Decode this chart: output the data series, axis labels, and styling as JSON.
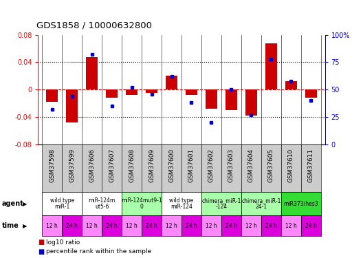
{
  "title": "GDS1858 / 10000632800",
  "samples": [
    "GSM37598",
    "GSM37599",
    "GSM37606",
    "GSM37607",
    "GSM37608",
    "GSM37609",
    "GSM37600",
    "GSM37601",
    "GSM37602",
    "GSM37603",
    "GSM37604",
    "GSM37605",
    "GSM37610",
    "GSM37611"
  ],
  "log10_ratio": [
    -0.018,
    -0.048,
    0.048,
    -0.012,
    -0.008,
    -0.005,
    0.02,
    -0.008,
    -0.028,
    -0.03,
    -0.038,
    0.068,
    0.012,
    -0.012
  ],
  "pct_rank": [
    32,
    44,
    82,
    35,
    52,
    46,
    62,
    38,
    20,
    50,
    27,
    78,
    58,
    40
  ],
  "ylim_left": [
    -0.08,
    0.08
  ],
  "ylim_right": [
    0,
    100
  ],
  "yticks_left": [
    -0.08,
    -0.04,
    0.0,
    0.04,
    0.08
  ],
  "yticks_right": [
    0,
    25,
    50,
    75,
    100
  ],
  "ytick_labels_right": [
    "0",
    "25",
    "50",
    "75",
    "100%"
  ],
  "agent_groups": [
    {
      "label": "wild type\nmiR-1",
      "cols": [
        0,
        1
      ],
      "color": "#ffffff"
    },
    {
      "label": "miR-124m\nut5-6",
      "cols": [
        2,
        3
      ],
      "color": "#ffffff"
    },
    {
      "label": "miR-124mut9-1\n0",
      "cols": [
        4,
        5
      ],
      "color": "#aaffaa"
    },
    {
      "label": "wild type\nmiR-124",
      "cols": [
        6,
        7
      ],
      "color": "#ffffff"
    },
    {
      "label": "chimera_miR-1\n-124",
      "cols": [
        8,
        9
      ],
      "color": "#aaffaa"
    },
    {
      "label": "chimera_miR-1\n24-1",
      "cols": [
        10,
        11
      ],
      "color": "#aaffaa"
    },
    {
      "label": "miR373/hes3",
      "cols": [
        12,
        13
      ],
      "color": "#33dd33"
    }
  ],
  "time_labels": [
    "12 h",
    "24 h",
    "12 h",
    "24 h",
    "12 h",
    "24 h",
    "12 h",
    "24 h",
    "12 h",
    "24 h",
    "12 h",
    "24 h",
    "12 h",
    "24 h"
  ],
  "time_colors_12": "#ff88ff",
  "time_colors_24": "#dd00dd",
  "bar_color": "#cc0000",
  "dot_color": "#0000cc",
  "zero_line_color": "#cc0000",
  "bg_color": "#ffffff",
  "xlabels_bg": "#cccccc",
  "bar_width": 0.6
}
